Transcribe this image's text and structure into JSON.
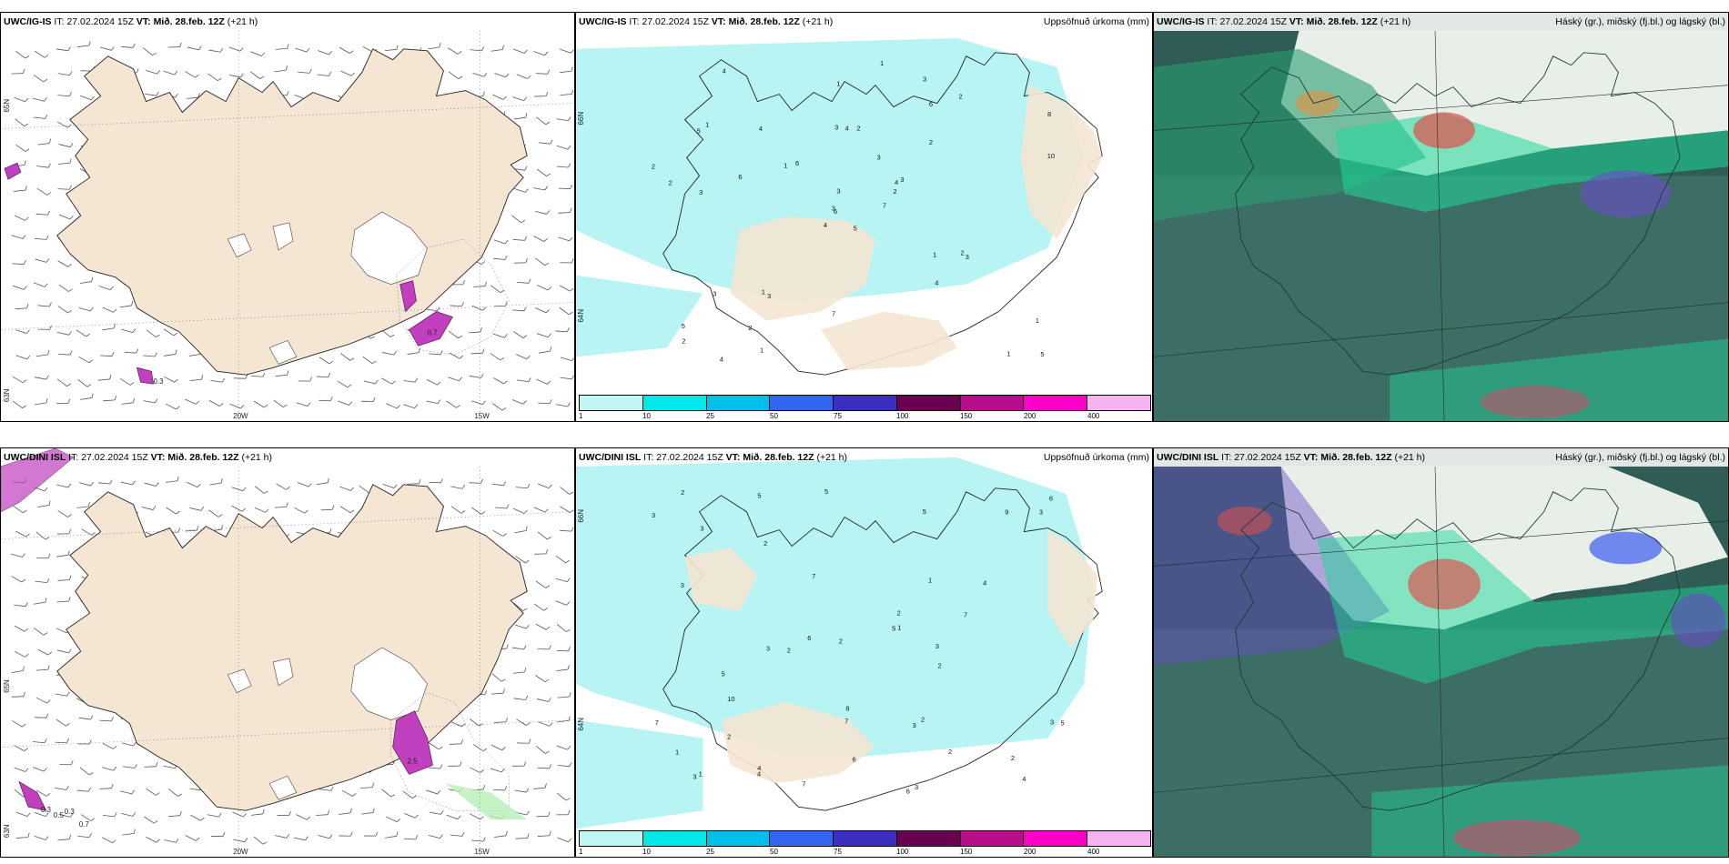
{
  "rows": [
    {
      "model": "UWC/IG-IS",
      "it_label": "IT:",
      "it_value": "27.02.2024 15Z",
      "vt_label": "VT:",
      "vt_value": "Mið. 28.feb. 12Z",
      "lead": "(+21 h)",
      "wind_values": [
        "0.7",
        "0.3"
      ],
      "precip_numbers": [
        "5",
        "5",
        "6",
        "5",
        "4",
        "3",
        "3",
        "2",
        "6",
        "7",
        "4",
        "5",
        "3",
        "8",
        "4",
        "2",
        "4",
        "3",
        "3",
        "3",
        "6",
        "2",
        "2",
        "4",
        "3",
        "3",
        "1",
        "1",
        "2",
        "1",
        "10",
        "3",
        "7",
        "3",
        "4",
        "2",
        "1",
        "1",
        "1",
        "2",
        "1",
        "1",
        "6",
        "4",
        "1",
        "2",
        "2"
      ]
    },
    {
      "model": "UWC/DINI ISL",
      "it_label": "IT:",
      "it_value": "27.02.2024 15Z",
      "vt_label": "VT:",
      "vt_value": "Mið. 28.feb. 12Z",
      "lead": "(+21 h)",
      "wind_values": [
        "0.3",
        "0.7",
        "0.5",
        "0.3",
        "2.5"
      ],
      "precip_numbers": [
        "7",
        "6",
        "4",
        "2",
        "5",
        "3",
        "3",
        "4",
        "5",
        "7",
        "9",
        "6",
        "6",
        "7",
        "5",
        "5",
        "3",
        "4",
        "2",
        "3",
        "3",
        "6",
        "2",
        "3",
        "4",
        "5",
        "7",
        "10",
        "2",
        "2",
        "2",
        "3",
        "8",
        "3",
        "2",
        "3",
        "3",
        "1",
        "1",
        "2",
        "1",
        "7",
        "5",
        "1",
        "2",
        "2"
      ]
    }
  ],
  "precip_title": "Uppsöfnuð úrkoma (mm)",
  "cloud_title": "Háský (gr.), miðský (fj.bl.) og lágský (bl.)",
  "wind_axis": {
    "lon_labels": [
      "20W",
      "15W"
    ],
    "lat_labels_top": [
      "65N",
      "63N"
    ],
    "lat_labels_bottom": [
      "65N",
      "63N"
    ]
  },
  "precip_lat_labels": [
    "66N",
    "64N"
  ],
  "colorbar": {
    "ticks": [
      "1",
      "10",
      "25",
      "50",
      "75",
      "100",
      "150",
      "200",
      "400"
    ],
    "colors": [
      "#bff7f7",
      "#00e8ea",
      "#00c0ea",
      "#3366f0",
      "#3a2fc0",
      "#6b0050",
      "#b80d8c",
      "#ff00c8",
      "#f7b2f2"
    ]
  },
  "palette": {
    "land": "#f5e5d3",
    "precip": "#b8f4f4",
    "cloud_dark": "#2f5c55",
    "cloud_green": "#1fd89a",
    "high_cloud": "#e8efe8"
  }
}
